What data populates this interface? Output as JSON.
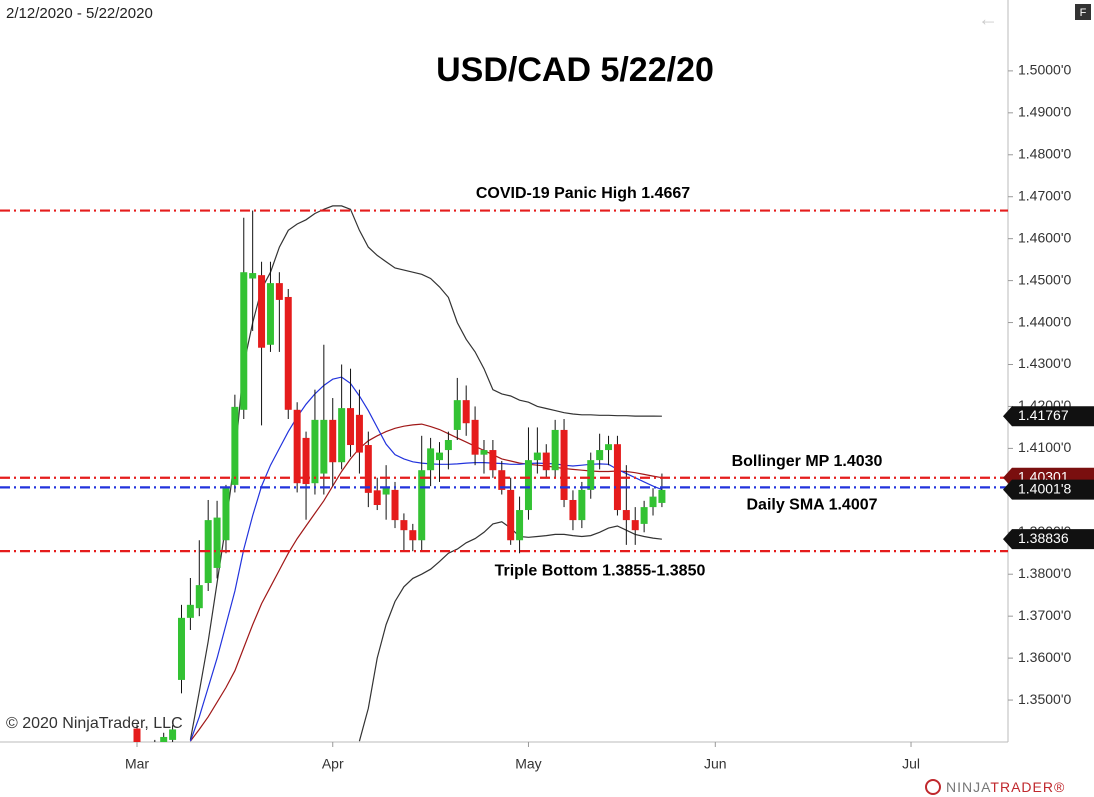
{
  "chart_data": {
    "type": "candlestick",
    "title": "USD/CAD 5/22/20",
    "date_range": "2/12/2020 - 5/22/2020",
    "copyright": "© 2020 NinjaTrader, LLC",
    "brand": [
      "NINJA",
      "TRADER®"
    ],
    "categories": [
      null,
      null,
      null,
      null,
      null,
      null,
      null,
      null,
      null,
      null,
      null,
      null,
      null,
      null,
      null,
      null,
      null,
      null,
      null,
      null,
      null,
      null,
      null,
      null,
      null,
      null,
      null,
      null,
      null,
      null,
      null,
      null,
      null,
      null,
      null,
      null,
      null,
      null,
      null,
      null,
      null,
      null,
      null,
      null,
      null,
      null,
      null,
      null,
      null,
      null,
      null,
      null,
      null,
      null,
      null,
      null,
      null,
      null,
      null,
      null
    ],
    "open": [
      1.3432,
      1.3388,
      1.3345,
      1.3398,
      1.3405,
      1.3548,
      1.3696,
      1.3719,
      1.3779,
      1.3815,
      1.3881,
      1.4013,
      1.4192,
      1.4505,
      1.4513,
      1.4347,
      1.4494,
      1.4461,
      1.4192,
      1.4125,
      1.4017,
      1.404,
      1.4168,
      1.4067,
      1.4196,
      1.418,
      1.4108,
      1.4,
      1.399,
      1.4001,
      1.3929,
      1.3905,
      1.3881,
      1.4048,
      1.4072,
      1.4096,
      1.4144,
      1.4215,
      1.4168,
      1.4085,
      1.4096,
      1.4048,
      1.4001,
      1.3881,
      1.3953,
      1.4072,
      1.409,
      1.4048,
      1.4144,
      1.3977,
      1.3929,
      1.4001,
      1.4072,
      1.4096,
      1.411,
      1.3953,
      1.3929,
      1.392,
      1.396,
      1.397
    ],
    "high": [
      1.3442,
      1.3398,
      1.3405,
      1.3422,
      1.344,
      1.3727,
      1.3791,
      1.3881,
      1.3977,
      1.3975,
      1.4013,
      1.4228,
      1.465,
      1.4667,
      1.4545,
      1.4545,
      1.452,
      1.448,
      1.421,
      1.414,
      1.424,
      1.4347,
      1.422,
      1.43,
      1.429,
      1.424,
      1.414,
      1.403,
      1.406,
      1.402,
      1.3945,
      1.392,
      1.413,
      1.4125,
      1.4115,
      1.414,
      1.4268,
      1.425,
      1.42,
      1.412,
      1.412,
      1.407,
      1.403,
      1.3985,
      1.415,
      1.415,
      1.411,
      1.4168,
      1.417,
      1.4,
      1.402,
      1.409,
      1.4135,
      1.413,
      1.413,
      1.406,
      1.396,
      1.3975,
      1.4005,
      1.404
    ],
    "low": [
      1.3372,
      1.3318,
      1.333,
      1.3386,
      1.3395,
      1.3516,
      1.3667,
      1.37,
      1.376,
      1.379,
      1.385,
      1.3995,
      1.417,
      1.438,
      1.4155,
      1.433,
      1.433,
      1.417,
      1.3995,
      1.393,
      1.399,
      1.399,
      1.401,
      1.405,
      1.408,
      1.404,
      1.396,
      1.3953,
      1.393,
      1.391,
      1.3855,
      1.3855,
      1.3855,
      1.401,
      1.402,
      1.405,
      1.412,
      1.413,
      1.406,
      1.404,
      1.403,
      1.399,
      1.387,
      1.385,
      1.393,
      1.404,
      1.403,
      1.403,
      1.396,
      1.3905,
      1.391,
      1.398,
      1.405,
      1.406,
      1.394,
      1.387,
      1.387,
      1.39,
      1.394,
      1.396
    ],
    "close": [
      1.3388,
      1.334,
      1.3365,
      1.3412,
      1.343,
      1.3696,
      1.3727,
      1.3774,
      1.3929,
      1.3935,
      1.4005,
      1.4199,
      1.452,
      1.4518,
      1.434,
      1.4494,
      1.4454,
      1.4192,
      1.4017,
      1.4015,
      1.4168,
      1.4168,
      1.4067,
      1.4196,
      1.4108,
      1.409,
      1.3994,
      1.3965,
      1.4005,
      1.3929,
      1.3905,
      1.3881,
      1.4048,
      1.41,
      1.409,
      1.412,
      1.4215,
      1.416,
      1.4085,
      1.4096,
      1.4048,
      1.4001,
      1.3881,
      1.3953,
      1.4072,
      1.409,
      1.4048,
      1.4144,
      1.3977,
      1.3929,
      1.4001,
      1.4072,
      1.4096,
      1.411,
      1.3953,
      1.3929,
      1.3905,
      1.396,
      1.3985,
      1.4001
    ],
    "up_color": "#33c233",
    "down_color": "#e51c1c",
    "lines": [
      {
        "color": "#333333",
        "values": [
          null,
          null,
          null,
          null,
          null,
          null,
          1.3405,
          1.352,
          1.364,
          1.378,
          1.392,
          1.408,
          1.43,
          1.44,
          1.448,
          1.452,
          1.458,
          1.462,
          1.4635,
          1.4645,
          1.466,
          1.467,
          1.4678,
          1.4678,
          1.467,
          1.462,
          1.458,
          1.456,
          1.4545,
          1.453,
          1.4525,
          1.452,
          1.4515,
          1.4505,
          1.4485,
          1.446,
          1.44,
          1.436,
          1.433,
          1.429,
          1.424,
          1.423,
          1.4225,
          1.4215,
          1.421,
          1.42,
          1.4195,
          1.419,
          1.4185,
          1.4182,
          1.418,
          1.418,
          1.4179,
          1.4179,
          1.4178,
          1.4178,
          1.4177,
          1.4177,
          1.4177,
          1.41767
        ]
      },
      {
        "color": "#a01818",
        "values": [
          null,
          null,
          null,
          null,
          null,
          null,
          1.3402,
          1.343,
          1.346,
          1.3495,
          1.353,
          1.357,
          1.3625,
          1.368,
          1.373,
          1.377,
          1.381,
          1.385,
          1.3885,
          1.3915,
          1.3945,
          1.3975,
          1.401,
          1.4045,
          1.4075,
          1.41,
          1.4118,
          1.413,
          1.414,
          1.4148,
          1.4153,
          1.4156,
          1.4158,
          1.4152,
          1.4145,
          1.4135,
          1.4125,
          1.4115,
          1.4105,
          1.4095,
          1.4085,
          1.4075,
          1.407,
          1.4065,
          1.4062,
          1.406,
          1.4058,
          1.4055,
          1.4052,
          1.405,
          1.4048,
          1.4046,
          1.4045,
          1.4045,
          1.4046,
          1.4045,
          1.4042,
          1.4038,
          1.4034,
          1.403
        ]
      },
      {
        "color": "#333333",
        "values": [
          null,
          null,
          null,
          null,
          null,
          null,
          null,
          null,
          null,
          null,
          null,
          null,
          null,
          null,
          null,
          null,
          null,
          null,
          null,
          null,
          null,
          null,
          null,
          null,
          null,
          1.3402,
          1.348,
          1.36,
          1.368,
          1.3735,
          1.377,
          1.379,
          1.38,
          1.3812,
          1.383,
          1.385,
          1.386,
          1.3875,
          1.3885,
          1.39,
          1.392,
          1.3925,
          1.391,
          1.389,
          1.3888,
          1.389,
          1.3892,
          1.3895,
          1.3895,
          1.3892,
          1.389,
          1.3892,
          1.39,
          1.391,
          1.3915,
          1.3905,
          1.3895,
          1.389,
          1.3886,
          1.38836
        ]
      },
      {
        "color": "#2233dd",
        "values": [
          null,
          null,
          null,
          null,
          null,
          null,
          1.3402,
          1.346,
          1.353,
          1.36,
          1.368,
          1.376,
          1.386,
          1.394,
          1.401,
          1.406,
          1.41,
          1.414,
          1.4175,
          1.4205,
          1.423,
          1.425,
          1.4265,
          1.427,
          1.4255,
          1.4225,
          1.419,
          1.415,
          1.411,
          1.4085,
          1.4075,
          1.4068,
          1.4065,
          1.4063,
          1.4062,
          1.4062,
          1.4063,
          1.4065,
          1.4066,
          1.4066,
          1.4065,
          1.4064,
          1.4062,
          1.4062,
          1.4064,
          1.4065,
          1.4064,
          1.4063,
          1.406,
          1.4058,
          1.406,
          1.4062,
          1.4063,
          1.4062,
          1.405,
          1.404,
          1.403,
          1.402,
          1.401,
          1.40018
        ]
      }
    ],
    "levels": [
      {
        "value": 1.4667,
        "color": "#e51c1c",
        "label": "COVID-19 Panic High 1.4667"
      },
      {
        "value": 1.403,
        "color": "#e51c1c",
        "label": "Bollinger MP 1.4030"
      },
      {
        "value": 1.4007,
        "color": "#2233dd",
        "label": "Daily SMA 1.4007"
      },
      {
        "value": 1.3855,
        "color": "#e51c1c",
        "label": "Triple Bottom 1.3855-1.3850"
      }
    ],
    "price_markers": [
      {
        "value": 1.41767,
        "label": "1.41767",
        "color": "#111111"
      },
      {
        "value": 1.40301,
        "label": "1.40301",
        "color": "#7a0f0f"
      },
      {
        "value": 1.40018,
        "label": "1.4001'8",
        "color": "#111111"
      },
      {
        "value": 1.38836,
        "label": "1.38836",
        "color": "#111111"
      }
    ],
    "xlim": [
      -15.4,
      97.9
    ],
    "xticks": [
      {
        "value": 0,
        "label": "Mar"
      },
      {
        "value": 22,
        "label": "Apr"
      },
      {
        "value": 44,
        "label": "May"
      },
      {
        "value": 65,
        "label": "Jun"
      },
      {
        "value": 87,
        "label": "Jul"
      }
    ],
    "ylim": [
      1.34,
      1.5169
    ],
    "yticks": [
      {
        "value": 1.5,
        "label": "1.5000'0"
      },
      {
        "value": 1.49,
        "label": "1.4900'0"
      },
      {
        "value": 1.48,
        "label": "1.4800'0"
      },
      {
        "value": 1.47,
        "label": "1.4700'0"
      },
      {
        "value": 1.46,
        "label": "1.4600'0"
      },
      {
        "value": 1.45,
        "label": "1.4500'0"
      },
      {
        "value": 1.44,
        "label": "1.4400'0"
      },
      {
        "value": 1.43,
        "label": "1.4300'0"
      },
      {
        "value": 1.42,
        "label": "1.4200'0"
      },
      {
        "value": 1.41,
        "label": "1.4100'0"
      },
      {
        "value": 1.4,
        "label": "1.4000'0"
      },
      {
        "value": 1.39,
        "label": "1.3900'0"
      },
      {
        "value": 1.38,
        "label": "1.3800'0"
      },
      {
        "value": 1.37,
        "label": "1.3700'0"
      },
      {
        "value": 1.36,
        "label": "1.3600'0"
      },
      {
        "value": 1.35,
        "label": "1.3500'0"
      }
    ]
  }
}
